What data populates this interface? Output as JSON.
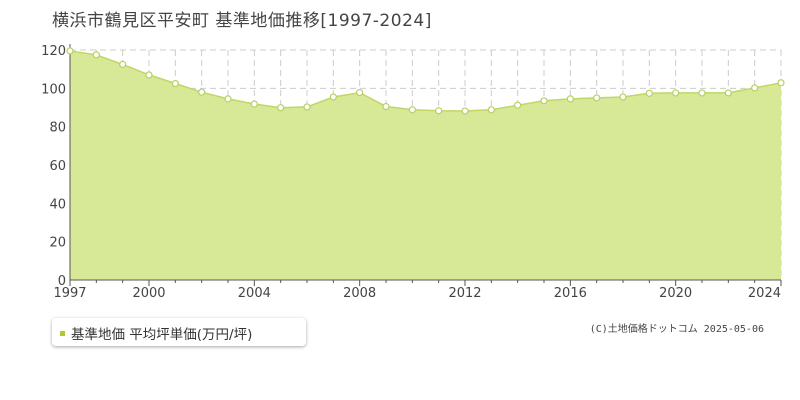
{
  "title": "横浜市鶴見区平安町 基準地価推移[1997-2024]",
  "legend": {
    "label": "基準地価 平均坪単価(万円/坪)"
  },
  "copyright": "(C)土地価格ドットコム 2025-05-06",
  "colors": {
    "area_fill": "#d5e890",
    "line": "#bfd765",
    "marker_fill": "#ffffff",
    "marker_stroke": "#b6d060",
    "legend_marker": "#a8cc2c",
    "grid": "#cccccc",
    "axis": "#555555",
    "tick_text": "#444444"
  },
  "chart_data": {
    "type": "area",
    "title": "横浜市鶴見区平安町 基準地価推移[1997-2024]",
    "xlabel": "",
    "ylabel": "",
    "x_ticks": [
      1997,
      2000,
      2004,
      2008,
      2012,
      2016,
      2020,
      2024
    ],
    "y_ticks": [
      0,
      20,
      40,
      60,
      80,
      100,
      120
    ],
    "xlim": [
      1997,
      2024
    ],
    "ylim": [
      0,
      120
    ],
    "grid": true,
    "legend_position": "bottom-left",
    "series": [
      {
        "name": "基準地価 平均坪単価(万円/坪)",
        "x": [
          1997,
          1998,
          1999,
          2000,
          2001,
          2002,
          2003,
          2004,
          2005,
          2006,
          2007,
          2008,
          2009,
          2010,
          2011,
          2012,
          2013,
          2014,
          2015,
          2016,
          2017,
          2018,
          2019,
          2020,
          2021,
          2022,
          2023,
          2024
        ],
        "values": [
          119.5,
          117.5,
          112.5,
          107,
          102.5,
          98,
          94.5,
          91.8,
          89.9,
          90.3,
          95.5,
          97.8,
          90.5,
          88.8,
          88.3,
          88.2,
          88.8,
          91.2,
          93.5,
          94.5,
          95,
          95.5,
          97.4,
          97.6,
          97.6,
          97.6,
          100.2,
          102.9
        ]
      }
    ]
  }
}
